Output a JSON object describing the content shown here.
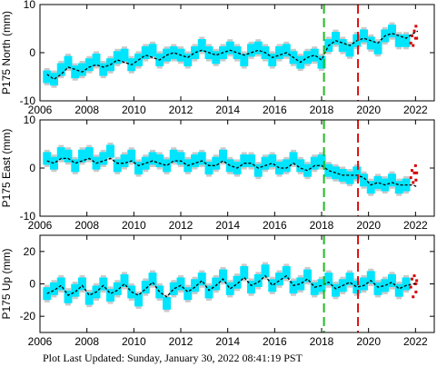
{
  "footer_text": "Plot Last Updated:   Sunday, January 30, 2022 08:41:19 PST",
  "colors": {
    "errorbar": "#b4b4b4",
    "observed": "#00e5ff",
    "recent": "#d40000",
    "model": "#000000",
    "event_green": "#22bb22",
    "event_red": "#dd1111"
  },
  "event_lines": [
    {
      "name": "green-event",
      "year": 2018.1,
      "color": "#22bb22"
    },
    {
      "name": "red-event",
      "year": 2019.55,
      "color": "#dd1111"
    }
  ],
  "chart_data": [
    {
      "type": "scatter",
      "id": "north",
      "ylabel": "P175 North (mm)",
      "xlim": [
        2006,
        2022.8
      ],
      "ylim": [
        -10,
        10
      ],
      "xticks": [
        2006,
        2008,
        2010,
        2012,
        2014,
        2016,
        2018,
        2020,
        2022
      ],
      "yticks": [
        -10,
        0,
        10
      ],
      "series": [
        {
          "role": "observed",
          "x": [
            2006.3,
            2006.6,
            2006.9,
            2007.2,
            2007.5,
            2007.8,
            2008.1,
            2008.4,
            2008.7,
            2009.0,
            2009.3,
            2009.6,
            2009.9,
            2010.2,
            2010.5,
            2010.8,
            2011.1,
            2011.4,
            2011.7,
            2012.0,
            2012.3,
            2012.6,
            2012.9,
            2013.2,
            2013.5,
            2013.8,
            2014.1,
            2014.4,
            2014.7,
            2015.0,
            2015.3,
            2015.6,
            2015.9,
            2016.2,
            2016.5,
            2016.8,
            2017.1,
            2017.4,
            2017.7,
            2018.0,
            2018.3,
            2018.6,
            2018.9,
            2019.2,
            2019.5,
            2019.8,
            2020.1,
            2020.4,
            2020.7,
            2021.0,
            2021.3,
            2021.6
          ],
          "y": [
            -5.0,
            -5.5,
            -3.5,
            -2.0,
            -4.0,
            -3.5,
            -2.5,
            -1.5,
            -3.5,
            -2.5,
            -1.0,
            -0.5,
            -2.5,
            -1.5,
            0.0,
            0.5,
            -1.5,
            -0.5,
            0.0,
            -0.5,
            -1.5,
            0.0,
            1.5,
            0.0,
            -1.0,
            0.0,
            1.0,
            0.0,
            -1.5,
            0.5,
            1.0,
            0.0,
            -1.5,
            0.0,
            0.5,
            -1.0,
            -2.0,
            -1.0,
            -0.5,
            -2.0,
            1.5,
            3.0,
            1.5,
            0.5,
            2.5,
            3.5,
            2.0,
            1.0,
            3.5,
            4.5,
            2.5,
            2.5
          ]
        },
        {
          "role": "recent",
          "x": [
            2021.8,
            2021.85,
            2021.9,
            2021.95,
            2022.0,
            2022.02,
            2022.05
          ],
          "y": [
            2.0,
            3.5,
            1.5,
            4.5,
            3.0,
            5.5,
            3.0
          ]
        },
        {
          "role": "model",
          "x": [
            2006.3,
            2006.6,
            2006.9,
            2007.2,
            2007.5,
            2007.8,
            2008.1,
            2008.4,
            2008.7,
            2009.0,
            2009.3,
            2009.6,
            2009.9,
            2010.2,
            2010.5,
            2010.8,
            2011.1,
            2011.4,
            2011.7,
            2012.0,
            2012.3,
            2012.6,
            2012.9,
            2013.2,
            2013.5,
            2013.8,
            2014.1,
            2014.4,
            2014.7,
            2015.0,
            2015.3,
            2015.6,
            2015.9,
            2016.2,
            2016.5,
            2016.8,
            2017.1,
            2017.4,
            2017.7,
            2018.0,
            2018.3,
            2018.6,
            2018.9,
            2019.2,
            2019.5,
            2019.8,
            2020.1,
            2020.4,
            2020.7,
            2021.0,
            2021.3,
            2021.6,
            2021.9,
            2022.1
          ],
          "y": [
            -4.5,
            -5.5,
            -4.5,
            -3.0,
            -3.5,
            -4.0,
            -3.0,
            -2.5,
            -3.0,
            -2.5,
            -1.5,
            -2.0,
            -2.5,
            -1.5,
            -0.5,
            -1.0,
            -1.5,
            -0.5,
            0.0,
            -0.5,
            -1.0,
            0.0,
            0.5,
            0.0,
            -0.5,
            0.0,
            0.5,
            0.0,
            -0.5,
            0.0,
            0.5,
            0.0,
            -1.0,
            -0.5,
            0.0,
            -1.0,
            -2.0,
            -1.0,
            -0.5,
            -1.5,
            1.5,
            2.5,
            2.0,
            1.5,
            2.5,
            3.0,
            2.5,
            2.0,
            3.5,
            4.0,
            3.5,
            3.0,
            4.0,
            4.5
          ]
        }
      ]
    },
    {
      "type": "scatter",
      "id": "east",
      "ylabel": "P175 East (mm)",
      "xlim": [
        2006,
        2022.8
      ],
      "ylim": [
        -10,
        10
      ],
      "xticks": [
        2006,
        2008,
        2010,
        2012,
        2014,
        2016,
        2018,
        2020,
        2022
      ],
      "yticks": [
        -10,
        0,
        10
      ],
      "series": [
        {
          "role": "observed",
          "x": [
            2006.3,
            2006.6,
            2006.9,
            2007.2,
            2007.5,
            2007.8,
            2008.1,
            2008.4,
            2008.7,
            2009.0,
            2009.3,
            2009.6,
            2009.9,
            2010.2,
            2010.5,
            2010.8,
            2011.1,
            2011.4,
            2011.7,
            2012.0,
            2012.3,
            2012.6,
            2012.9,
            2013.2,
            2013.5,
            2013.8,
            2014.1,
            2014.4,
            2014.7,
            2015.0,
            2015.3,
            2015.6,
            2015.9,
            2016.2,
            2016.5,
            2016.8,
            2017.1,
            2017.4,
            2017.7,
            2018.0,
            2018.3,
            2018.6,
            2018.9,
            2019.2,
            2019.5,
            2019.8,
            2020.1,
            2020.4,
            2020.7,
            2021.0,
            2021.3,
            2021.6
          ],
          "y": [
            2.0,
            1.0,
            3.0,
            2.5,
            0.5,
            2.5,
            3.0,
            1.0,
            2.0,
            3.5,
            0.5,
            1.5,
            2.5,
            0.0,
            1.0,
            2.0,
            1.5,
            0.5,
            2.5,
            2.0,
            0.5,
            1.5,
            2.0,
            0.0,
            1.0,
            2.5,
            0.5,
            0.0,
            1.5,
            1.5,
            -0.5,
            1.0,
            1.5,
            0.0,
            0.5,
            2.0,
            0.5,
            -0.5,
            1.0,
            1.5,
            -0.5,
            -1.0,
            -1.5,
            -2.0,
            -1.0,
            -2.5,
            -4.0,
            -3.0,
            -3.5,
            -2.5,
            -4.0,
            -3.5
          ]
        },
        {
          "role": "recent",
          "x": [
            2021.8,
            2021.85,
            2021.9,
            2021.95,
            2022.0,
            2022.02,
            2022.05
          ],
          "y": [
            -2.0,
            -0.5,
            -3.0,
            -1.0,
            0.5,
            -2.5,
            -1.0
          ]
        },
        {
          "role": "model",
          "x": [
            2006.3,
            2006.6,
            2006.9,
            2007.2,
            2007.5,
            2007.8,
            2008.1,
            2008.4,
            2008.7,
            2009.0,
            2009.3,
            2009.6,
            2009.9,
            2010.2,
            2010.5,
            2010.8,
            2011.1,
            2011.4,
            2011.7,
            2012.0,
            2012.3,
            2012.6,
            2012.9,
            2013.2,
            2013.5,
            2013.8,
            2014.1,
            2014.4,
            2014.7,
            2015.0,
            2015.3,
            2015.6,
            2015.9,
            2016.2,
            2016.5,
            2016.8,
            2017.1,
            2017.4,
            2017.7,
            2018.0,
            2018.3,
            2018.6,
            2018.9,
            2019.2,
            2019.5,
            2019.8,
            2020.1,
            2020.4,
            2020.7,
            2021.0,
            2021.3,
            2021.6,
            2021.9,
            2022.1
          ],
          "y": [
            1.5,
            1.0,
            2.0,
            2.0,
            1.0,
            1.5,
            2.0,
            1.0,
            1.5,
            2.0,
            1.0,
            1.0,
            1.5,
            0.5,
            1.0,
            1.5,
            1.0,
            0.5,
            1.5,
            1.5,
            0.5,
            1.0,
            1.5,
            0.5,
            0.5,
            1.5,
            0.5,
            0.0,
            1.0,
            1.0,
            0.0,
            0.5,
            1.0,
            0.0,
            0.0,
            1.0,
            0.0,
            -0.5,
            0.5,
            0.5,
            -0.5,
            -1.0,
            -1.5,
            -1.5,
            -1.5,
            -2.0,
            -3.5,
            -3.0,
            -3.5,
            -3.0,
            -3.5,
            -3.5,
            -3.5,
            -4.0
          ]
        }
      ]
    },
    {
      "type": "scatter",
      "id": "up",
      "ylabel": "P175 Up (mm)",
      "xlim": [
        2006,
        2022.8
      ],
      "ylim": [
        -30,
        30
      ],
      "xticks": [
        2006,
        2008,
        2010,
        2012,
        2014,
        2016,
        2018,
        2020,
        2022
      ],
      "yticks": [
        -20,
        0,
        20
      ],
      "series": [
        {
          "role": "observed",
          "x": [
            2006.3,
            2006.6,
            2006.9,
            2007.2,
            2007.5,
            2007.8,
            2008.1,
            2008.4,
            2008.7,
            2009.0,
            2009.3,
            2009.6,
            2009.9,
            2010.2,
            2010.5,
            2010.8,
            2011.1,
            2011.4,
            2011.7,
            2012.0,
            2012.3,
            2012.6,
            2012.9,
            2013.2,
            2013.5,
            2013.8,
            2014.1,
            2014.4,
            2014.7,
            2015.0,
            2015.3,
            2015.6,
            2015.9,
            2016.2,
            2016.5,
            2016.8,
            2017.1,
            2017.4,
            2017.7,
            2018.0,
            2018.3,
            2018.6,
            2018.9,
            2019.2,
            2019.5,
            2019.8,
            2020.1,
            2020.4,
            2020.7,
            2021.0,
            2021.3,
            2021.6
          ],
          "y": [
            -6,
            -3,
            0,
            -8,
            -4,
            0,
            -9,
            -5,
            0,
            -7,
            -3,
            2,
            -5,
            -10,
            -2,
            3,
            -5,
            -12,
            -3,
            0,
            -6,
            -1,
            3,
            -5,
            0,
            5,
            -3,
            1,
            7,
            -2,
            2,
            8,
            -1,
            3,
            7,
            -2,
            0,
            5,
            -3,
            -1,
            3,
            -4,
            -1,
            3,
            -2,
            0,
            4,
            -3,
            -1,
            2,
            -4,
            0
          ]
        },
        {
          "role": "recent",
          "x": [
            2021.8,
            2021.85,
            2021.9,
            2021.95,
            2022.0,
            2022.02,
            2022.05
          ],
          "y": [
            -2,
            3,
            -8,
            5,
            0,
            -5,
            2
          ]
        },
        {
          "role": "model",
          "x": [
            2006.3,
            2006.6,
            2006.9,
            2007.2,
            2007.5,
            2007.8,
            2008.1,
            2008.4,
            2008.7,
            2009.0,
            2009.3,
            2009.6,
            2009.9,
            2010.2,
            2010.5,
            2010.8,
            2011.1,
            2011.4,
            2011.7,
            2012.0,
            2012.3,
            2012.6,
            2012.9,
            2013.2,
            2013.5,
            2013.8,
            2014.1,
            2014.4,
            2014.7,
            2015.0,
            2015.3,
            2015.6,
            2015.9,
            2016.2,
            2016.5,
            2016.8,
            2017.1,
            2017.4,
            2017.7,
            2018.0,
            2018.3,
            2018.6,
            2018.9,
            2019.2,
            2019.5,
            2019.8,
            2020.1,
            2020.4,
            2020.7,
            2021.0,
            2021.3,
            2021.6,
            2021.9,
            2022.1
          ],
          "y": [
            -6,
            -4,
            -1,
            -7,
            -5,
            -1,
            -7,
            -5,
            -1,
            -6,
            -4,
            0,
            -5,
            -7,
            -3,
            1,
            -5,
            -8,
            -3,
            -1,
            -5,
            -2,
            2,
            -4,
            -1,
            3,
            -3,
            0,
            4,
            -1,
            1,
            5,
            -1,
            2,
            5,
            -1,
            0,
            3,
            -2,
            -1,
            1,
            -3,
            -1,
            1,
            -2,
            -1,
            2,
            -2,
            -1,
            1,
            -3,
            -1,
            0,
            0
          ]
        }
      ]
    }
  ]
}
